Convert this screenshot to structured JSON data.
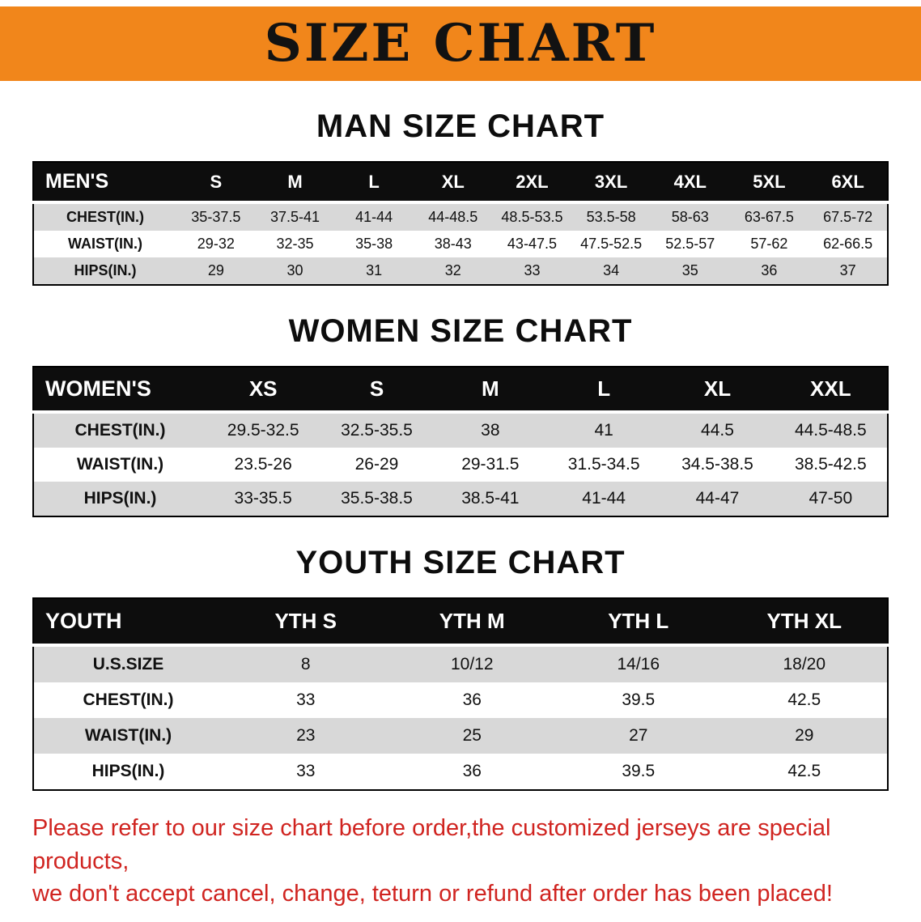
{
  "banner": {
    "title": "SIZE CHART",
    "bg_color": "#F1861B"
  },
  "men": {
    "heading": "MAN SIZE CHART",
    "table": {
      "header": [
        "MEN'S",
        "S",
        "M",
        "L",
        "XL",
        "2XL",
        "3XL",
        "4XL",
        "5XL",
        "6XL"
      ],
      "rows": [
        {
          "label": "CHEST(IN.)",
          "values": [
            "35-37.5",
            "37.5-41",
            "41-44",
            "44-48.5",
            "48.5-53.5",
            "53.5-58",
            "58-63",
            "63-67.5",
            "67.5-72"
          ]
        },
        {
          "label": "WAIST(IN.)",
          "values": [
            "29-32",
            "32-35",
            "35-38",
            "38-43",
            "43-47.5",
            "47.5-52.5",
            "52.5-57",
            "57-62",
            "62-66.5"
          ]
        },
        {
          "label": "HIPS(IN.)",
          "values": [
            "29",
            "30",
            "31",
            "32",
            "33",
            "34",
            "35",
            "36",
            "37"
          ]
        }
      ]
    }
  },
  "women": {
    "heading": "WOMEN SIZE CHART",
    "table": {
      "header": [
        "WOMEN'S",
        "XS",
        "S",
        "M",
        "L",
        "XL",
        "XXL"
      ],
      "rows": [
        {
          "label": "CHEST(IN.)",
          "values": [
            "29.5-32.5",
            "32.5-35.5",
            "38",
            "41",
            "44.5",
            "44.5-48.5"
          ]
        },
        {
          "label": "WAIST(IN.)",
          "values": [
            "23.5-26",
            "26-29",
            "29-31.5",
            "31.5-34.5",
            "34.5-38.5",
            "38.5-42.5"
          ]
        },
        {
          "label": "HIPS(IN.)",
          "values": [
            "33-35.5",
            "35.5-38.5",
            "38.5-41",
            "41-44",
            "44-47",
            "47-50"
          ]
        }
      ]
    }
  },
  "youth": {
    "heading": "YOUTH SIZE CHART",
    "table": {
      "header": [
        "YOUTH",
        "YTH S",
        "YTH M",
        "YTH L",
        "YTH XL"
      ],
      "rows": [
        {
          "label": "U.S.SIZE",
          "values": [
            "8",
            "10/12",
            "14/16",
            "18/20"
          ]
        },
        {
          "label": "CHEST(IN.)",
          "values": [
            "33",
            "36",
            "39.5",
            "42.5"
          ]
        },
        {
          "label": "WAIST(IN.)",
          "values": [
            "23",
            "25",
            "27",
            "29"
          ]
        },
        {
          "label": "HIPS(IN.)",
          "values": [
            "33",
            "36",
            "39.5",
            "42.5"
          ]
        }
      ]
    }
  },
  "notice": {
    "line1": "Please refer to our size chart before order,the customized jerseys are special products,",
    "line2": "we don't accept cancel, change, teturn or refund after order has been placed!",
    "text_color": "#D02420"
  }
}
